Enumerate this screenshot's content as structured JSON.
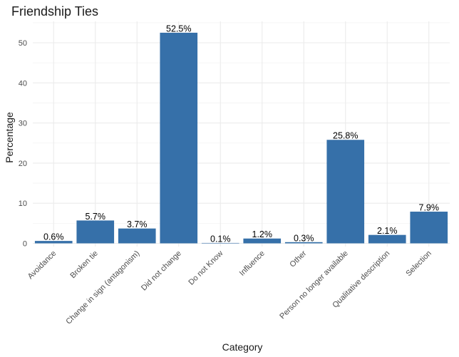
{
  "chart_data": {
    "type": "bar",
    "title": "Friendship Ties",
    "xlabel": "Category",
    "ylabel": "Percentage",
    "categories": [
      "Avoidance",
      "Broken tie",
      "Change in sign (antagonism)",
      "Did not change",
      "Do not Know",
      "Influence",
      "Other",
      "Person no longer available",
      "Qualitative description",
      "Selection"
    ],
    "values": [
      0.6,
      5.7,
      3.7,
      52.5,
      0.1,
      1.2,
      0.3,
      25.8,
      2.1,
      7.9
    ],
    "data_labels": [
      "0.6%",
      "5.7%",
      "3.7%",
      "52.5%",
      "0.1%",
      "1.2%",
      "0.3%",
      "25.8%",
      "2.1%",
      "7.9%"
    ],
    "ylim": [
      0,
      55
    ],
    "yticks": [
      0,
      10,
      20,
      30,
      40,
      50
    ],
    "grid": true,
    "legend": "none",
    "bar_color": "#3670A9"
  }
}
